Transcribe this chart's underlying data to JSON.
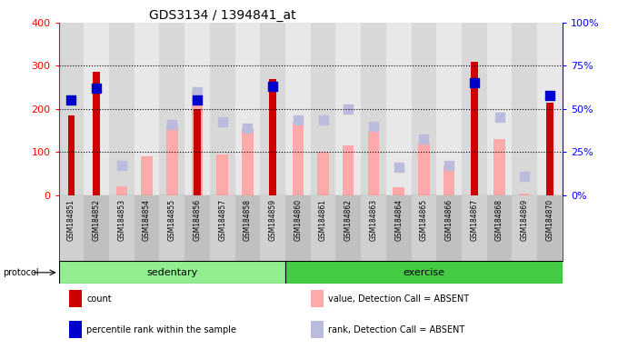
{
  "title": "GDS3134 / 1394841_at",
  "samples": [
    "GSM184851",
    "GSM184852",
    "GSM184853",
    "GSM184854",
    "GSM184855",
    "GSM184856",
    "GSM184857",
    "GSM184858",
    "GSM184859",
    "GSM184860",
    "GSM184861",
    "GSM184862",
    "GSM184863",
    "GSM184864",
    "GSM184865",
    "GSM184866",
    "GSM184867",
    "GSM184868",
    "GSM184869",
    "GSM184870"
  ],
  "count": [
    185,
    287,
    0,
    0,
    0,
    200,
    0,
    0,
    270,
    0,
    0,
    0,
    0,
    0,
    0,
    0,
    310,
    0,
    0,
    215
  ],
  "percentile_rank": [
    55,
    62,
    0,
    0,
    0,
    55,
    0,
    0,
    63,
    0,
    0,
    0,
    0,
    0,
    0,
    0,
    65,
    0,
    0,
    58
  ],
  "absent_value": [
    0,
    0,
    22,
    90,
    165,
    245,
    95,
    155,
    0,
    170,
    100,
    115,
    150,
    20,
    120,
    70,
    0,
    130,
    5,
    0
  ],
  "absent_rank": [
    0,
    0,
    70,
    0,
    165,
    240,
    170,
    155,
    0,
    175,
    175,
    200,
    160,
    65,
    130,
    70,
    0,
    180,
    45,
    0
  ],
  "protocol_groups": [
    {
      "label": "sedentary",
      "start": 0,
      "end": 9,
      "color": "#90ee90"
    },
    {
      "label": "exercise",
      "start": 9,
      "end": 20,
      "color": "#44cc44"
    }
  ],
  "ylim_left": [
    0,
    400
  ],
  "ylim_right": [
    0,
    100
  ],
  "yticks_left": [
    0,
    100,
    200,
    300,
    400
  ],
  "yticks_right": [
    0,
    25,
    50,
    75,
    100
  ],
  "yticklabels_right": [
    "0%",
    "25%",
    "50%",
    "75%",
    "100%"
  ],
  "color_count": "#cc0000",
  "color_percentile": "#0000cc",
  "color_absent_value": "#ffaaaa",
  "color_absent_rank": "#bbbbdd",
  "absent_square_size": 55,
  "perc_square_size": 60,
  "legend_items": [
    {
      "color": "#cc0000",
      "label": "count"
    },
    {
      "color": "#0000cc",
      "label": "percentile rank within the sample"
    },
    {
      "color": "#ffaaaa",
      "label": "value, Detection Call = ABSENT"
    },
    {
      "color": "#bbbbdd",
      "label": "rank, Detection Call = ABSENT"
    }
  ]
}
